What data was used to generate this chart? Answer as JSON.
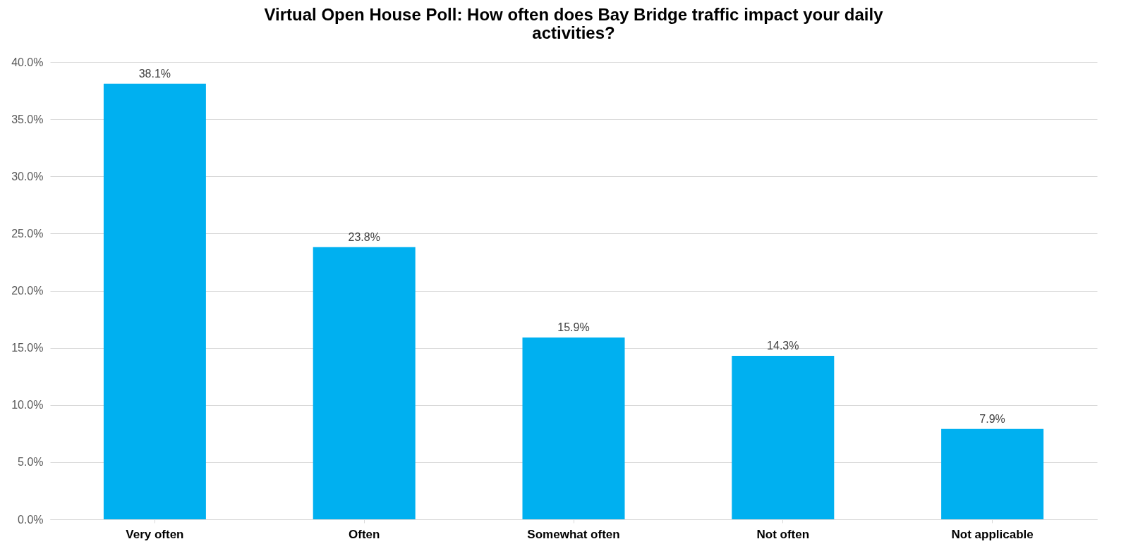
{
  "chart_data": {
    "type": "bar",
    "title": [
      "Virtual Open House Poll: How often does Bay Bridge traffic impact your daily",
      "activities?"
    ],
    "categories": [
      "Very often",
      "Often",
      "Somewhat often",
      "Not often",
      "Not applicable"
    ],
    "values": [
      38.1,
      23.8,
      15.9,
      14.3,
      7.9
    ],
    "value_labels": [
      "38.1%",
      "23.8%",
      "15.9%",
      "14.3%",
      "7.9%"
    ],
    "color": "#00b0f0",
    "ylim": [
      0,
      40
    ],
    "yticks": [
      {
        "value": 0,
        "label": "0.0%"
      },
      {
        "value": 5,
        "label": "5.0%"
      },
      {
        "value": 10,
        "label": "10.0%"
      },
      {
        "value": 15,
        "label": "15.0%"
      },
      {
        "value": 20,
        "label": "20.0%"
      },
      {
        "value": 25,
        "label": "25.0%"
      },
      {
        "value": 30,
        "label": "30.0%"
      },
      {
        "value": 35,
        "label": "35.0%"
      },
      {
        "value": 40,
        "label": "40.0%"
      }
    ],
    "grid": "y"
  }
}
